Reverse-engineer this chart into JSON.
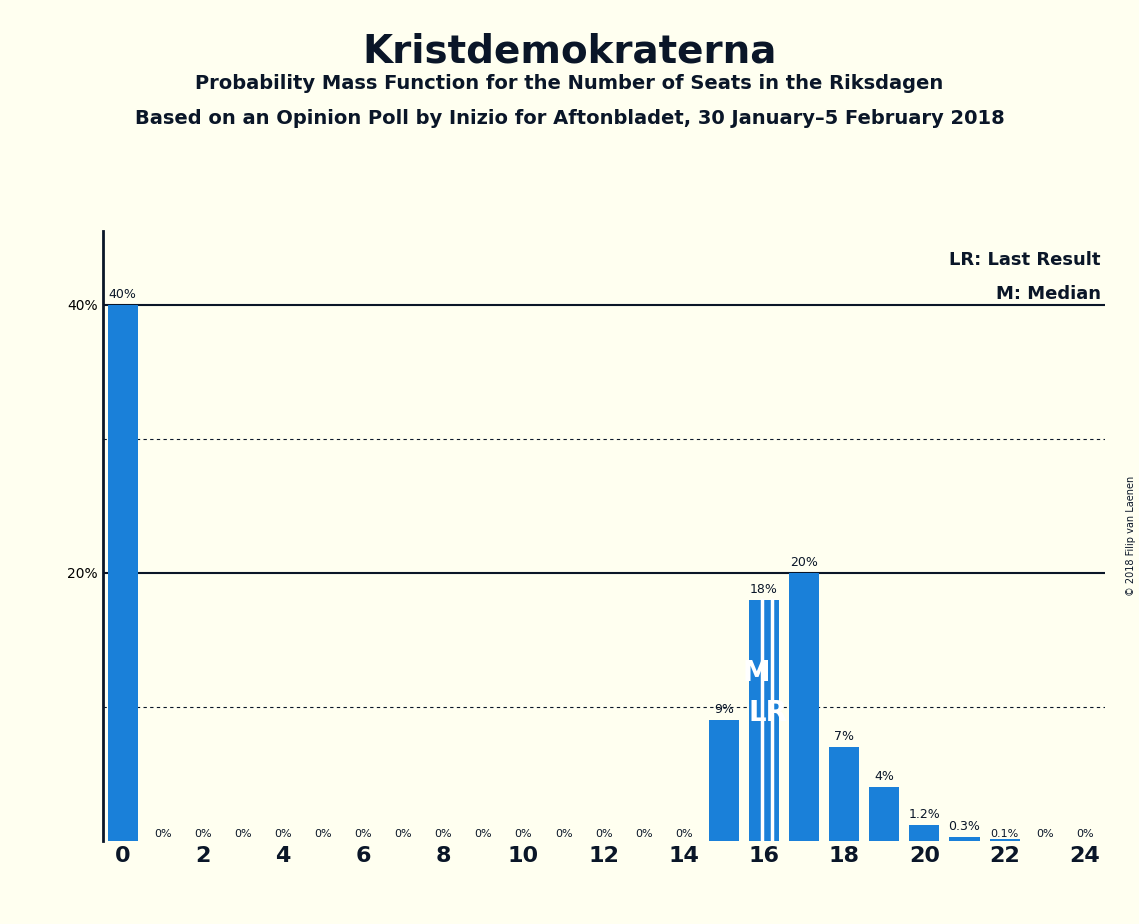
{
  "title": "Kristdemokraterna",
  "subtitle1": "Probability Mass Function for the Number of Seats in the Riksdagen",
  "subtitle2": "Based on an Opinion Poll by Inizio for Aftonbladet, 30 January–5 February 2018",
  "copyright": "© 2018 Filip van Laenen",
  "seats": [
    0,
    1,
    2,
    3,
    4,
    5,
    6,
    7,
    8,
    9,
    10,
    11,
    12,
    13,
    14,
    15,
    16,
    17,
    18,
    19,
    20,
    21,
    22,
    23,
    24
  ],
  "probabilities": [
    0.4,
    0.0,
    0.0,
    0.0,
    0.0,
    0.0,
    0.0,
    0.0,
    0.0,
    0.0,
    0.0,
    0.0,
    0.0,
    0.0,
    0.0,
    0.09,
    0.18,
    0.2,
    0.07,
    0.04,
    0.012,
    0.003,
    0.001,
    0.0,
    0.0
  ],
  "bar_labels": [
    "40%",
    "0%",
    "0%",
    "0%",
    "0%",
    "0%",
    "0%",
    "0%",
    "0%",
    "0%",
    "0%",
    "0%",
    "0%",
    "0%",
    "0%",
    "9%",
    "18%",
    "20%",
    "7%",
    "4%",
    "1.2%",
    "0.3%",
    "0.1%",
    "0%",
    "0%"
  ],
  "bar_color": "#1a80d9",
  "background_color": "#fffff0",
  "axis_color": "#0a1628",
  "median_seat": 16,
  "last_result_seat": 16,
  "xlim": [
    -0.5,
    24.5
  ],
  "ylim": [
    0,
    0.455
  ],
  "xticks": [
    0,
    2,
    4,
    6,
    8,
    10,
    12,
    14,
    16,
    18,
    20,
    22,
    24
  ],
  "legend_lr": "LR: Last Result",
  "legend_m": "M: Median"
}
